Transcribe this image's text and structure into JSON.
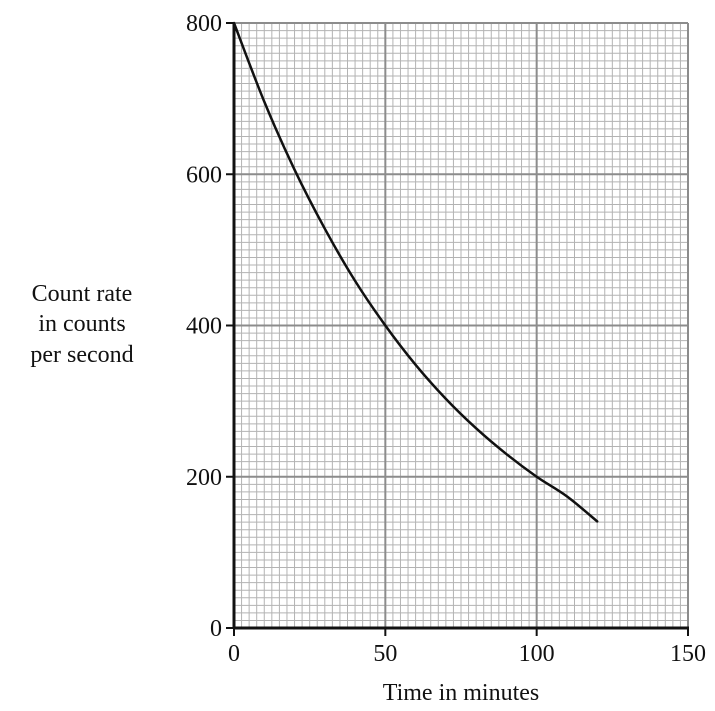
{
  "chart_data": {
    "type": "line",
    "title": "",
    "xlabel": "Time in minutes",
    "ylabel_lines": [
      "Count rate",
      "in counts",
      "per second"
    ],
    "xlim": [
      0,
      150
    ],
    "ylim": [
      0,
      800
    ],
    "x_ticks": [
      0,
      50,
      100,
      150
    ],
    "y_ticks": [
      0,
      200,
      400,
      600,
      800
    ],
    "x_tick_labels": [
      "0",
      "50",
      "100",
      "150"
    ],
    "y_tick_labels": [
      "0",
      "200",
      "400",
      "600",
      "800"
    ],
    "grid": true,
    "legend": "none",
    "series": [
      {
        "x": [
          0,
          10,
          20,
          30,
          40,
          50,
          60,
          70,
          80,
          90,
          100,
          110,
          120
        ],
        "y": [
          800,
          696,
          606,
          528,
          459,
          400,
          348,
          303,
          264,
          230,
          200,
          174,
          141
        ]
      }
    ]
  },
  "colors": {
    "background": "#ffffff",
    "grid_minor": "#b3b3b3",
    "grid_major": "#8c8c8c",
    "axis": "#111111",
    "curve": "#111111"
  }
}
